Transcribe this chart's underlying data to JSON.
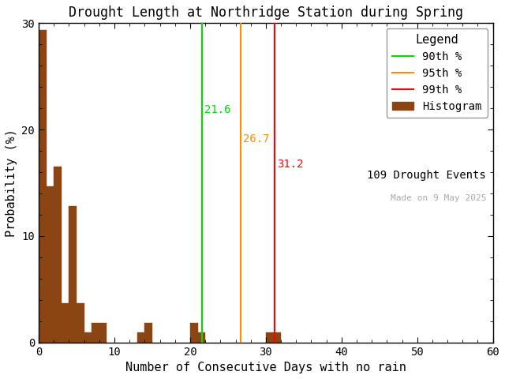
{
  "title": "Drought Length at Northridge Station during Spring",
  "xlabel": "Number of Consecutive Days with no rain",
  "ylabel": "Probability (%)",
  "xlim": [
    0,
    60
  ],
  "ylim": [
    0,
    30
  ],
  "bar_color": "#8B4513",
  "bar_edgecolor": "#8B4513",
  "background_color": "#ffffff",
  "bar_lefts": [
    0,
    1,
    2,
    3,
    4,
    5,
    6,
    7,
    8,
    13,
    14,
    20,
    21,
    30,
    31
  ],
  "bar_heights": [
    29.36,
    14.68,
    16.51,
    3.67,
    12.84,
    3.67,
    0.92,
    1.83,
    1.83,
    0.92,
    1.83,
    1.83,
    0.92,
    0.92,
    0.92
  ],
  "percentile_90": 21.6,
  "percentile_95": 26.7,
  "percentile_99": 31.2,
  "color_90": "#00dd00",
  "color_95": "#ff8c00",
  "color_99": "#ff0000",
  "label_90": "21.6",
  "label_95": "26.7",
  "label_99": "31.2",
  "legend_title": "Legend",
  "legend_labels": [
    "90th %",
    "95th %",
    "99th %",
    "Histogram"
  ],
  "n_events": "109 Drought Events",
  "made_on": "Made on 9 May 2025",
  "title_fontsize": 12,
  "axis_fontsize": 11,
  "tick_fontsize": 10,
  "legend_fontsize": 10
}
